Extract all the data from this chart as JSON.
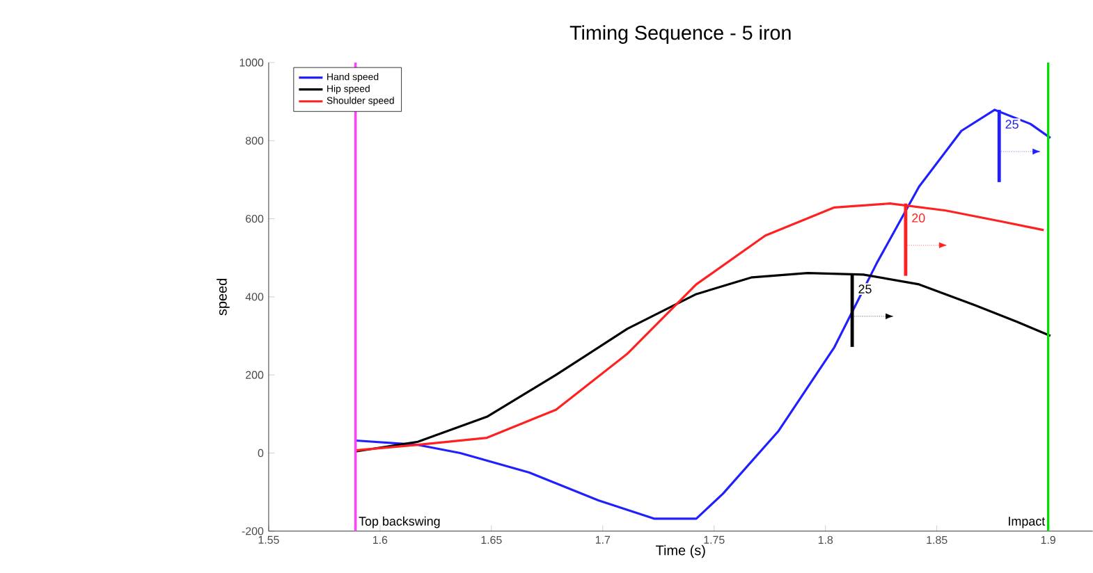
{
  "chart_data": {
    "type": "line",
    "title": "Timing Sequence - 5 iron",
    "xlabel": "Time (s)",
    "ylabel": "speed",
    "xlim": [
      1.55,
      1.92
    ],
    "ylim": [
      -200,
      1000
    ],
    "xticks": [
      1.55,
      1.6,
      1.65,
      1.7,
      1.75,
      1.8,
      1.85,
      1.9
    ],
    "yticks": [
      -200,
      0,
      200,
      400,
      600,
      800,
      1000
    ],
    "legend": "top left",
    "grid": false,
    "marker": "none",
    "line_style": "solid",
    "series": [
      {
        "name": "Hand speed",
        "color": "#2020ff",
        "x": [
          1.589,
          1.617,
          1.636,
          1.667,
          1.698,
          1.723,
          1.742,
          1.754,
          1.779,
          1.804,
          1.823,
          1.842,
          1.861,
          1.876,
          1.892,
          1.901
        ],
        "values": [
          32,
          21,
          0,
          -50,
          -121,
          -168,
          -168,
          -104,
          57,
          271,
          486,
          682,
          825,
          879,
          843,
          807
        ]
      },
      {
        "name": "Hip speed",
        "color": "#000000",
        "x": [
          1.589,
          1.617,
          1.648,
          1.679,
          1.711,
          1.742,
          1.767,
          1.792,
          1.817,
          1.842,
          1.867,
          1.886,
          1.901
        ],
        "values": [
          4,
          29,
          93,
          200,
          318,
          407,
          450,
          461,
          457,
          432,
          379,
          336,
          300
        ]
      },
      {
        "name": "Shoulder speed",
        "color": "#ff2020",
        "x": [
          1.589,
          1.617,
          1.648,
          1.679,
          1.711,
          1.742,
          1.773,
          1.804,
          1.829,
          1.854,
          1.879,
          1.898
        ],
        "values": [
          7,
          21,
          39,
          111,
          254,
          432,
          557,
          629,
          639,
          621,
          593,
          571
        ]
      }
    ],
    "ref_lines": [
      {
        "axis": "x",
        "value": 1.589,
        "label": "Top backswing",
        "color": "#ff40ff"
      },
      {
        "axis": "x",
        "value": 1.9,
        "label": "Impact",
        "color": "#00e000"
      }
    ],
    "annotations": [
      {
        "text": "25",
        "x": 1.878,
        "y": 879
      },
      {
        "text": "25",
        "x": 1.812,
        "y": 457
      },
      {
        "text": "20",
        "x": 1.836,
        "y": 639
      }
    ]
  }
}
